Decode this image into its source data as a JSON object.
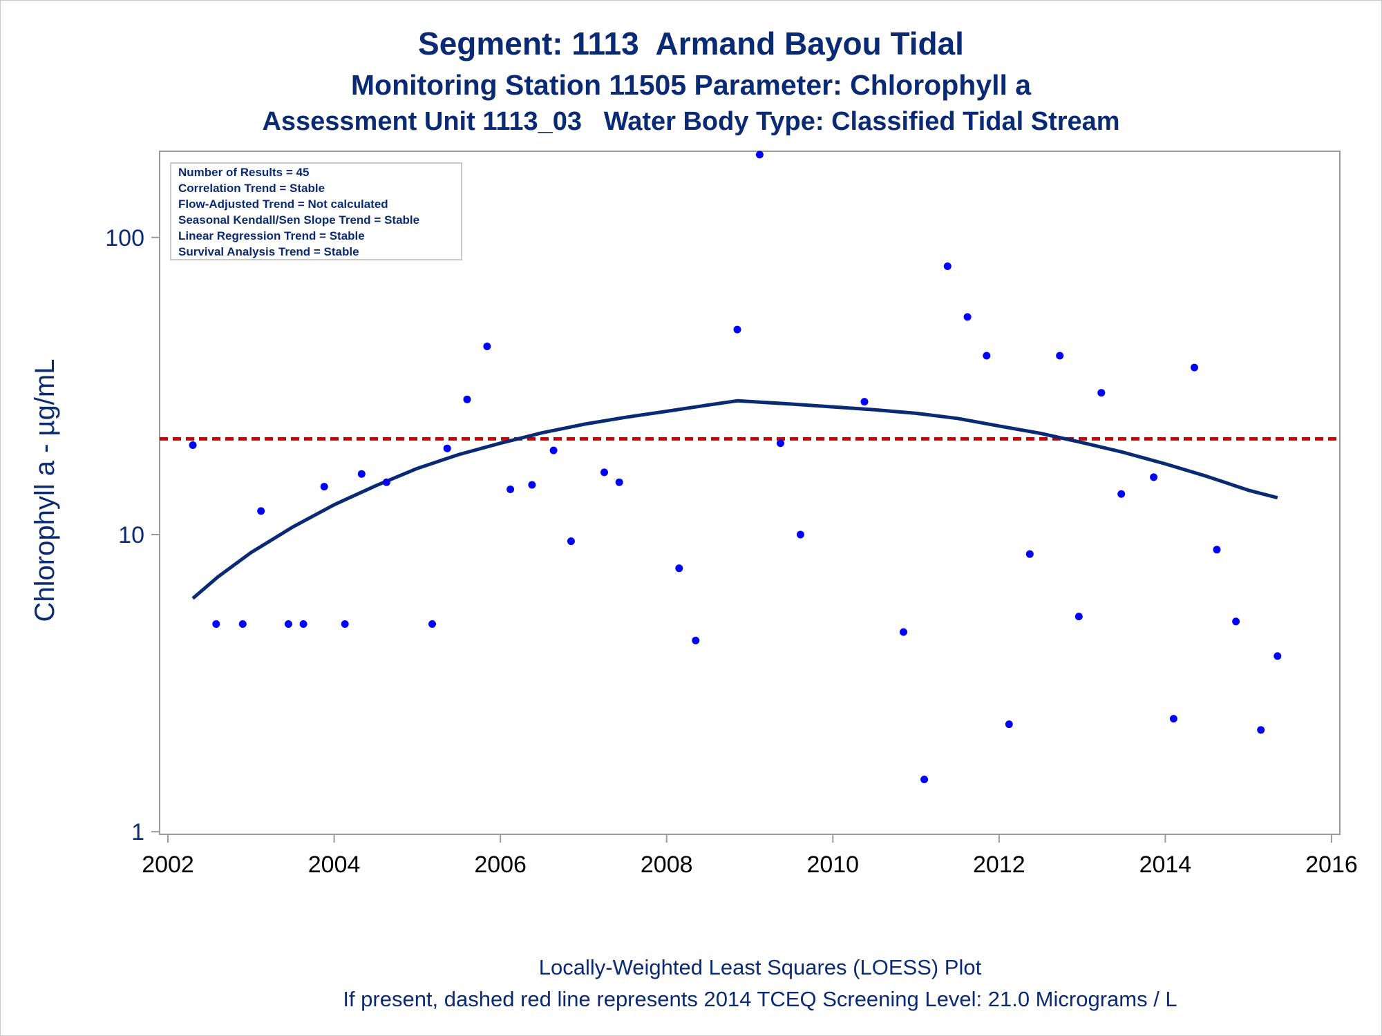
{
  "titles": {
    "line1": "Segment: 1113  Armand Bayou Tidal",
    "line2": "Monitoring Station 11505 Parameter: Chlorophyll a",
    "line3": "Assessment Unit 1113_03   Water Body Type: Classified Tidal Stream"
  },
  "footnotes": {
    "line1": "Locally-Weighted Least Squares (LOESS) Plot",
    "line2": "If present, dashed red line represents 2014 TCEQ Screening Level: 21.0 Micrograms / L"
  },
  "stats_box": [
    "Number of Results = 45",
    "Correlation Trend = Stable",
    "Flow-Adjusted Trend = Not calculated",
    "Seasonal Kendall/Sen Slope Trend = Stable",
    "Linear Regression Trend = Stable",
    "Survival Analysis Trend = Stable"
  ],
  "colors": {
    "text": "#0b2a74",
    "points": "#0000ff",
    "loess": "#0b2a74",
    "screening": "#cc0000",
    "axis": "#9a9a9a"
  },
  "chart_data": {
    "type": "scatter",
    "ylabel": "Chlorophyll a -  µg/mL",
    "xlabel": "",
    "y_scale": "log",
    "xlim": [
      2001.9,
      2016.1
    ],
    "ylim": [
      0.98,
      195
    ],
    "x_ticks": [
      2002,
      2004,
      2006,
      2008,
      2010,
      2012,
      2014,
      2016
    ],
    "y_ticks": [
      1,
      10,
      100
    ],
    "grid": false,
    "series": [
      {
        "name": "",
        "kind": "points",
        "x": [
          2002.3,
          2002.58,
          2002.9,
          2003.12,
          2003.45,
          2003.63,
          2003.88,
          2004.13,
          2004.33,
          2004.63,
          2005.18,
          2005.36,
          2005.6,
          2005.84,
          2006.12,
          2006.38,
          2006.64,
          2006.85,
          2007.25,
          2007.43,
          2008.15,
          2008.35,
          2008.85,
          2009.12,
          2009.37,
          2009.61,
          2010.38,
          2010.85,
          2011.1,
          2011.38,
          2011.62,
          2011.85,
          2012.12,
          2012.37,
          2012.73,
          2012.96,
          2013.23,
          2013.47,
          2013.86,
          2014.1,
          2014.35,
          2014.62,
          2014.85,
          2015.15,
          2015.35
        ],
        "y": [
          20,
          5,
          5,
          12,
          5,
          5,
          14.5,
          5,
          16,
          15,
          5,
          19.5,
          28.5,
          43,
          14.2,
          14.7,
          19.2,
          9.5,
          16.2,
          15,
          7.7,
          4.4,
          49,
          190,
          20.3,
          10,
          28,
          4.7,
          1.5,
          80,
          54,
          40,
          2.3,
          8.6,
          40,
          5.3,
          30,
          13.7,
          15.6,
          2.4,
          36.5,
          8.9,
          5.1,
          2.2,
          3.9
        ]
      },
      {
        "name": "",
        "kind": "loess",
        "x": [
          2002.3,
          2002.6,
          2003.0,
          2003.5,
          2004.0,
          2004.5,
          2005.0,
          2005.5,
          2006.0,
          2006.5,
          2007.0,
          2007.5,
          2008.0,
          2008.5,
          2008.85,
          2009.5,
          2010.0,
          2010.5,
          2011.0,
          2011.5,
          2012.0,
          2012.5,
          2013.0,
          2013.5,
          2014.0,
          2014.5,
          2015.0,
          2015.35
        ],
        "y": [
          6.1,
          7.2,
          8.7,
          10.6,
          12.6,
          14.6,
          16.7,
          18.6,
          20.3,
          22.0,
          23.5,
          24.8,
          26.0,
          27.3,
          28.2,
          27.5,
          26.9,
          26.3,
          25.6,
          24.6,
          23.2,
          21.9,
          20.4,
          18.9,
          17.3,
          15.7,
          14.1,
          13.3
        ]
      },
      {
        "name": "",
        "kind": "screening-level",
        "y": 21.0
      }
    ]
  }
}
